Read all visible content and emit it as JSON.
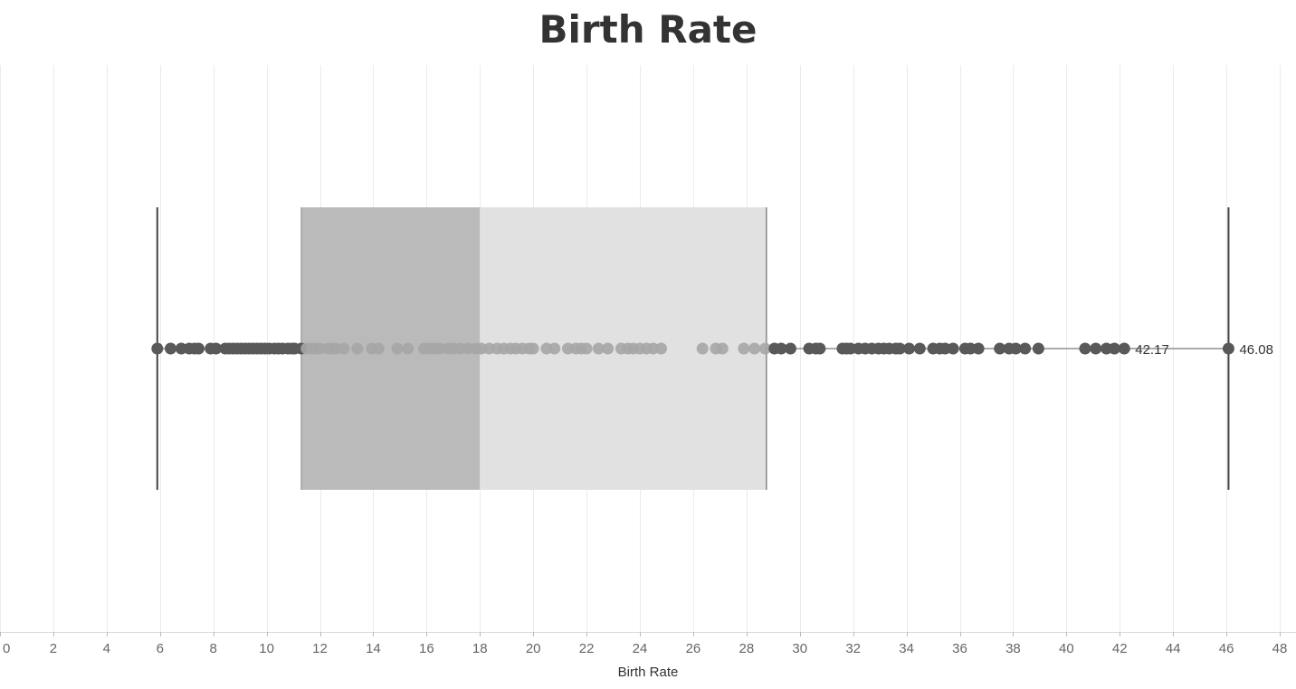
{
  "chart_data": {
    "type": "box",
    "title": "Birth Rate",
    "xlabel": "Birth Rate",
    "ylabel": "",
    "xlim": [
      0,
      48
    ],
    "ticks": [
      0,
      2,
      4,
      6,
      8,
      10,
      12,
      14,
      16,
      18,
      20,
      22,
      24,
      26,
      28,
      30,
      32,
      34,
      36,
      38,
      40,
      42,
      44,
      46,
      48
    ],
    "grid": true,
    "box": {
      "whisker_low": 5.9,
      "q1": 11.3,
      "median": 18.0,
      "q3": 28.75,
      "whisker_high": 46.08
    },
    "points": [
      5.9,
      6.4,
      6.8,
      7.1,
      7.3,
      7.45,
      7.9,
      8.1,
      8.45,
      8.6,
      8.75,
      8.9,
      9.05,
      9.2,
      9.35,
      9.5,
      9.65,
      9.8,
      9.95,
      10.1,
      10.3,
      10.45,
      10.6,
      10.8,
      10.95,
      11.05,
      11.3,
      11.5,
      11.7,
      11.85,
      12.0,
      12.3,
      12.5,
      12.6,
      12.9,
      13.4,
      13.95,
      14.2,
      14.9,
      15.3,
      15.9,
      16.1,
      16.3,
      16.5,
      16.8,
      17.0,
      17.25,
      17.55,
      17.85,
      18.05,
      18.35,
      18.65,
      18.9,
      19.15,
      19.35,
      19.6,
      19.85,
      20.0,
      20.5,
      20.8,
      21.3,
      21.6,
      21.8,
      22.0,
      22.45,
      22.8,
      23.3,
      23.55,
      23.75,
      24.0,
      24.25,
      24.5,
      24.8,
      26.35,
      26.85,
      27.1,
      27.9,
      28.3,
      28.7,
      29.05,
      29.3,
      29.65,
      30.35,
      30.6,
      30.75,
      31.6,
      31.75,
      31.9,
      32.2,
      32.45,
      32.7,
      32.95,
      33.15,
      33.35,
      33.6,
      33.75,
      34.1,
      34.5,
      35.0,
      35.25,
      35.45,
      35.75,
      36.2,
      36.4,
      36.7,
      37.5,
      37.85,
      38.1,
      38.45,
      38.95,
      40.7,
      41.1,
      41.5,
      41.8,
      42.17,
      46.08
    ],
    "labels": [
      {
        "x": 42.17,
        "text": "42.17"
      },
      {
        "x": 46.08,
        "text": "46.08"
      }
    ],
    "colors": {
      "box_lower": "#bababa",
      "box_upper": "#e1e1e1",
      "point_outside": "#595959",
      "point_inside": "#a6a6a6",
      "whisker": "#595959",
      "grid": "#ebebeb"
    }
  }
}
